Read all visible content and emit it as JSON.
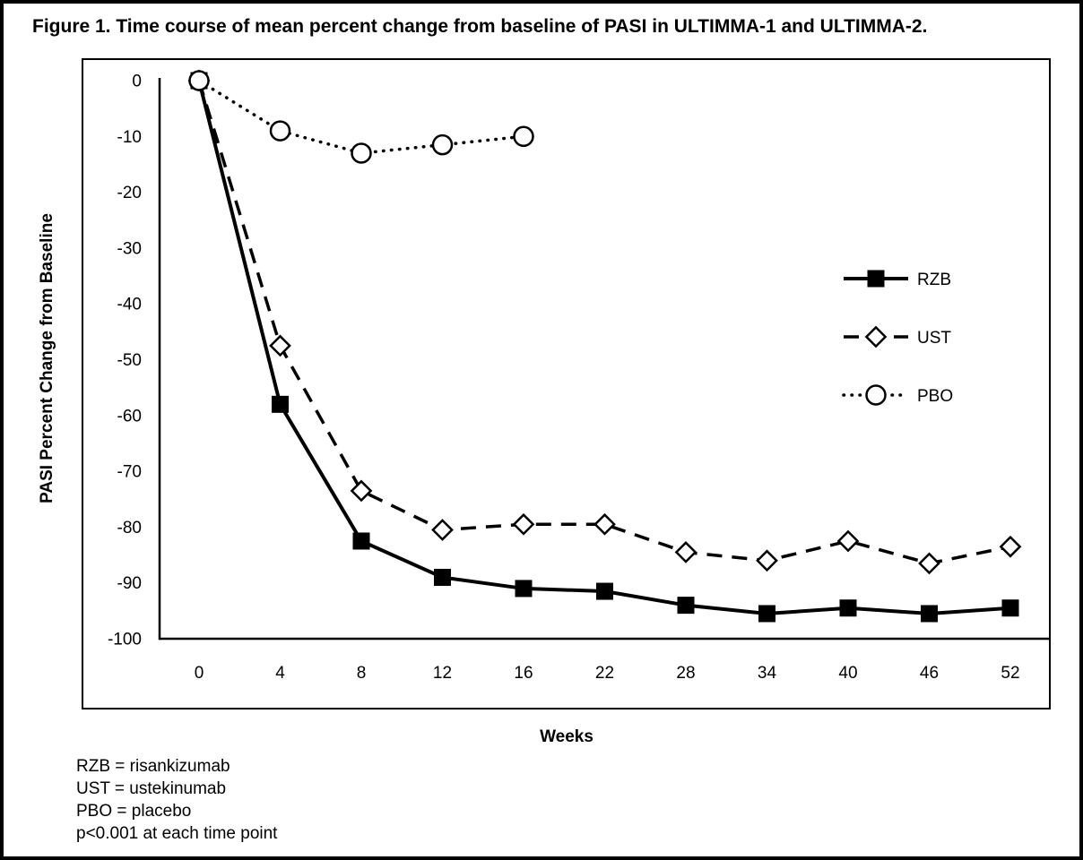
{
  "figure": {
    "title": "Figure 1. Time course of mean percent change from baseline of PASI in ULTIMMA-1 and ULTIMMA-2.",
    "footnotes": [
      "RZB = risankizumab",
      "UST = ustekinumab",
      "PBO = placebo",
      "p<0.001 at each time point"
    ]
  },
  "chart_data": {
    "type": "line",
    "title": "Figure 1. Time course of mean percent change from baseline of PASI in ULTIMMA-1 and ULTIMMA-2.",
    "xlabel": "Weeks",
    "ylabel": "PASI Percent Change from Baseline",
    "categories": [
      0,
      4,
      8,
      12,
      16,
      22,
      28,
      34,
      40,
      46,
      52
    ],
    "y_ticks": [
      0,
      -10,
      -20,
      -30,
      -40,
      -50,
      -60,
      -70,
      -80,
      -90,
      -100
    ],
    "ylim": [
      -100,
      0
    ],
    "grid": false,
    "legend_position": "middle-right",
    "series": [
      {
        "name": "RZB",
        "line": "solid",
        "marker": "filled-square",
        "values": [
          0,
          -58,
          -82.5,
          -89,
          -91,
          -91.5,
          -94,
          -95.5,
          -94.5,
          -95.5,
          -94.5
        ]
      },
      {
        "name": "UST",
        "line": "dashed",
        "marker": "open-diamond",
        "values": [
          0,
          -47.5,
          -73.5,
          -80.5,
          -79.5,
          -79.5,
          -84.5,
          -86,
          -82.5,
          -86.5,
          -83.5
        ]
      },
      {
        "name": "PBO",
        "line": "dotted",
        "marker": "open-circle",
        "values": [
          0,
          -9,
          -13,
          -11.5,
          -10,
          null,
          null,
          null,
          null,
          null,
          null
        ]
      }
    ],
    "colors": {
      "foreground": "#000000",
      "background": "#ffffff"
    }
  }
}
